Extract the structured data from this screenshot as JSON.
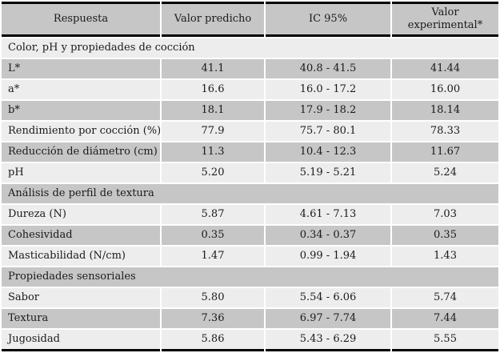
{
  "colors": {
    "header_bg": "#c6c6c6",
    "row_dark_bg": "#c6c6c6",
    "row_light_bg": "#ededed",
    "gap_bg": "#ffffff",
    "rule": "#000000",
    "text": "#1a1a1a"
  },
  "table": {
    "columns": [
      "Respuesta",
      "Valor predicho",
      "IC 95%",
      "Valor experimental*"
    ],
    "sections": [
      {
        "title": "Color, pH y propiedades de cocción",
        "rows": [
          {
            "label": "L*",
            "values": [
              "41.1",
              "40.8 - 41.5",
              "41.44"
            ]
          },
          {
            "label": "a*",
            "values": [
              "16.6",
              "16.0 - 17.2",
              "16.00"
            ]
          },
          {
            "label": "b*",
            "values": [
              "18.1",
              "17.9 - 18.2",
              "18.14"
            ]
          },
          {
            "label": "Rendimiento por cocción (%)",
            "values": [
              "77.9",
              "75.7 - 80.1",
              "78.33"
            ]
          },
          {
            "label": "Reducción de diámetro (cm)",
            "values": [
              "11.3",
              "10.4 - 12.3",
              "11.67"
            ]
          },
          {
            "label": "pH",
            "values": [
              "5.20",
              "5.19 - 5.21",
              "5.24"
            ]
          }
        ]
      },
      {
        "title": "Análisis de perfil de textura",
        "rows": [
          {
            "label": "Dureza (N)",
            "values": [
              "5.87",
              "4.61 - 7.13",
              "7.03"
            ]
          },
          {
            "label": "Cohesividad",
            "values": [
              "0.35",
              "0.34 - 0.37",
              "0.35"
            ]
          },
          {
            "label": "Masticabilidad (N/cm)",
            "values": [
              "1.47",
              "0.99 - 1.94",
              "1.43"
            ]
          }
        ]
      },
      {
        "title": "Propiedades sensoriales",
        "rows": [
          {
            "label": "Sabor",
            "values": [
              "5.80",
              "5.54 - 6.06",
              "5.74"
            ]
          },
          {
            "label": "Textura",
            "values": [
              "7.36",
              "6.97 - 7.74",
              "7.44"
            ]
          },
          {
            "label": "Jugosidad",
            "values": [
              "5.86",
              "5.43 - 6.29",
              "5.55"
            ]
          }
        ]
      }
    ]
  }
}
